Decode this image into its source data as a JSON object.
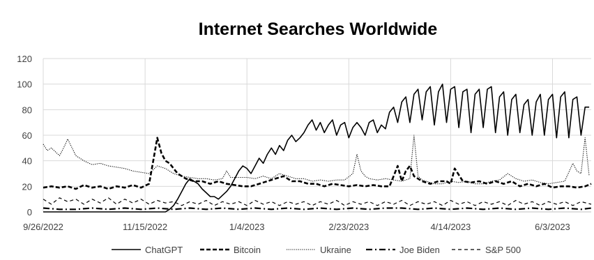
{
  "chart_data": {
    "type": "line",
    "title": "Internet Searches Worldwide",
    "xlabel": "",
    "ylabel": "",
    "ylim": [
      0,
      120
    ],
    "yticks": [
      0,
      20,
      40,
      60,
      80,
      100,
      120
    ],
    "x_tick_labels": [
      "9/26/2022",
      "11/15/2022",
      "1/4/2023",
      "2/23/2023",
      "4/14/2023",
      "6/3/2023"
    ],
    "x_tick_days": [
      0,
      50,
      100,
      150,
      200,
      250
    ],
    "xlim_days": [
      0,
      269
    ],
    "grid": true,
    "legend_position": "bottom",
    "series": [
      {
        "name": "ChatGPT",
        "style": "solid",
        "x": [
          0,
          60,
          62,
          64,
          66,
          68,
          70,
          72,
          74,
          76,
          78,
          80,
          82,
          84,
          86,
          88,
          90,
          92,
          94,
          96,
          98,
          100,
          102,
          104,
          106,
          108,
          110,
          112,
          114,
          116,
          118,
          120,
          122,
          124,
          126,
          128,
          130,
          132,
          134,
          136,
          138,
          140,
          142,
          144,
          146,
          148,
          150,
          152,
          154,
          156,
          158,
          160,
          162,
          164,
          166,
          168,
          170,
          172,
          174,
          176,
          178,
          180,
          182,
          184,
          186,
          188,
          190,
          192,
          194,
          196,
          198,
          200,
          202,
          204,
          206,
          208,
          210,
          212,
          214,
          216,
          218,
          220,
          222,
          224,
          226,
          228,
          230,
          232,
          234,
          236,
          238,
          240,
          242,
          244,
          246,
          248,
          250,
          252,
          254,
          256,
          258,
          260,
          262,
          264,
          266,
          268
        ],
        "values": [
          0,
          0,
          2,
          5,
          10,
          16,
          22,
          26,
          24,
          22,
          18,
          15,
          12,
          12,
          10,
          13,
          16,
          20,
          26,
          32,
          36,
          34,
          30,
          36,
          42,
          38,
          45,
          50,
          45,
          52,
          48,
          56,
          60,
          55,
          58,
          62,
          68,
          72,
          64,
          70,
          62,
          68,
          72,
          60,
          68,
          70,
          58,
          66,
          70,
          66,
          60,
          70,
          72,
          62,
          68,
          65,
          78,
          82,
          70,
          86,
          90,
          70,
          92,
          96,
          72,
          94,
          98,
          68,
          94,
          100,
          70,
          96,
          98,
          66,
          94,
          96,
          62,
          92,
          96,
          66,
          96,
          98,
          62,
          90,
          94,
          60,
          88,
          92,
          62,
          84,
          88,
          60,
          86,
          92,
          60,
          88,
          92,
          58,
          90,
          94,
          58,
          88,
          90,
          60,
          82,
          82
        ],
        "color": "#000000"
      },
      {
        "name": "Bitcoin",
        "style": "dashed",
        "x": [
          0,
          4,
          8,
          12,
          16,
          20,
          24,
          28,
          32,
          36,
          40,
          44,
          48,
          52,
          54,
          56,
          58,
          60,
          62,
          66,
          70,
          74,
          78,
          82,
          86,
          90,
          94,
          98,
          102,
          106,
          110,
          114,
          118,
          122,
          126,
          130,
          134,
          138,
          142,
          146,
          150,
          154,
          158,
          162,
          166,
          170,
          172,
          174,
          176,
          178,
          180,
          182,
          186,
          190,
          194,
          198,
          200,
          202,
          206,
          210,
          214,
          218,
          222,
          226,
          230,
          234,
          238,
          242,
          246,
          250,
          254,
          258,
          262,
          266,
          269
        ],
        "values": [
          19,
          20,
          19,
          20,
          18,
          21,
          19,
          20,
          18,
          20,
          19,
          21,
          19,
          22,
          40,
          58,
          46,
          40,
          38,
          30,
          26,
          24,
          24,
          22,
          24,
          22,
          21,
          20,
          20,
          22,
          24,
          26,
          28,
          24,
          24,
          22,
          22,
          20,
          22,
          21,
          20,
          21,
          20,
          21,
          20,
          20,
          28,
          36,
          24,
          32,
          36,
          28,
          24,
          22,
          24,
          24,
          22,
          34,
          24,
          23,
          24,
          22,
          24,
          22,
          24,
          20,
          22,
          20,
          22,
          19,
          20,
          20,
          19,
          20,
          22
        ],
        "color": "#000000"
      },
      {
        "name": "Ukraine",
        "style": "dotted",
        "x": [
          0,
          2,
          4,
          6,
          8,
          10,
          12,
          16,
          20,
          24,
          28,
          32,
          36,
          40,
          44,
          48,
          52,
          56,
          60,
          64,
          68,
          72,
          76,
          80,
          84,
          88,
          90,
          92,
          96,
          100,
          104,
          108,
          112,
          116,
          120,
          124,
          128,
          132,
          136,
          140,
          144,
          148,
          152,
          154,
          156,
          158,
          160,
          164,
          168,
          172,
          176,
          180,
          182,
          184,
          186,
          188,
          192,
          196,
          200,
          204,
          208,
          212,
          216,
          220,
          224,
          228,
          232,
          236,
          240,
          244,
          248,
          252,
          256,
          260,
          262,
          264,
          266,
          268
        ],
        "values": [
          53,
          48,
          50,
          47,
          44,
          50,
          57,
          44,
          40,
          37,
          38,
          36,
          35,
          34,
          32,
          31,
          30,
          36,
          34,
          30,
          28,
          27,
          26,
          26,
          25,
          26,
          32,
          27,
          27,
          27,
          26,
          28,
          26,
          30,
          28,
          26,
          26,
          24,
          25,
          24,
          25,
          25,
          30,
          45,
          32,
          28,
          26,
          25,
          26,
          25,
          24,
          26,
          60,
          28,
          25,
          24,
          22,
          22,
          24,
          23,
          24,
          22,
          22,
          24,
          25,
          30,
          26,
          24,
          25,
          23,
          22,
          23,
          24,
          38,
          32,
          30,
          58,
          28
        ],
        "color": "#000000"
      },
      {
        "name": "Joe Biden",
        "style": "dash-dot",
        "x": [
          0,
          8,
          16,
          24,
          32,
          40,
          48,
          56,
          64,
          72,
          80,
          88,
          96,
          104,
          112,
          120,
          128,
          136,
          144,
          152,
          160,
          168,
          176,
          184,
          192,
          200,
          208,
          216,
          224,
          232,
          240,
          248,
          256,
          264,
          269
        ],
        "values": [
          3,
          2,
          2,
          3,
          2,
          3,
          2,
          3,
          2,
          3,
          2,
          3,
          2,
          3,
          2,
          3,
          2,
          3,
          2,
          3,
          2,
          3,
          3,
          2,
          3,
          2,
          3,
          2,
          3,
          2,
          3,
          2,
          3,
          2,
          3
        ],
        "color": "#000000"
      },
      {
        "name": "S&P 500",
        "style": "dashed-fine",
        "x": [
          0,
          4,
          8,
          12,
          16,
          20,
          24,
          28,
          32,
          36,
          40,
          44,
          48,
          52,
          56,
          60,
          64,
          68,
          72,
          76,
          80,
          84,
          88,
          92,
          96,
          100,
          104,
          108,
          112,
          116,
          120,
          124,
          128,
          132,
          136,
          140,
          144,
          148,
          152,
          156,
          160,
          164,
          168,
          172,
          176,
          180,
          184,
          188,
          192,
          196,
          200,
          204,
          208,
          212,
          216,
          220,
          224,
          228,
          232,
          236,
          240,
          244,
          248,
          252,
          256,
          260,
          264,
          269
        ],
        "values": [
          10,
          6,
          11,
          8,
          10,
          6,
          10,
          7,
          11,
          6,
          10,
          7,
          10,
          6,
          9,
          7,
          8,
          5,
          8,
          6,
          9,
          5,
          8,
          6,
          8,
          5,
          9,
          6,
          8,
          5,
          8,
          6,
          8,
          5,
          8,
          6,
          9,
          5,
          8,
          6,
          8,
          5,
          8,
          6,
          9,
          5,
          8,
          6,
          8,
          5,
          9,
          6,
          8,
          5,
          8,
          6,
          8,
          5,
          9,
          6,
          8,
          5,
          8,
          6,
          8,
          5,
          8,
          6
        ],
        "color": "#000000"
      }
    ]
  }
}
